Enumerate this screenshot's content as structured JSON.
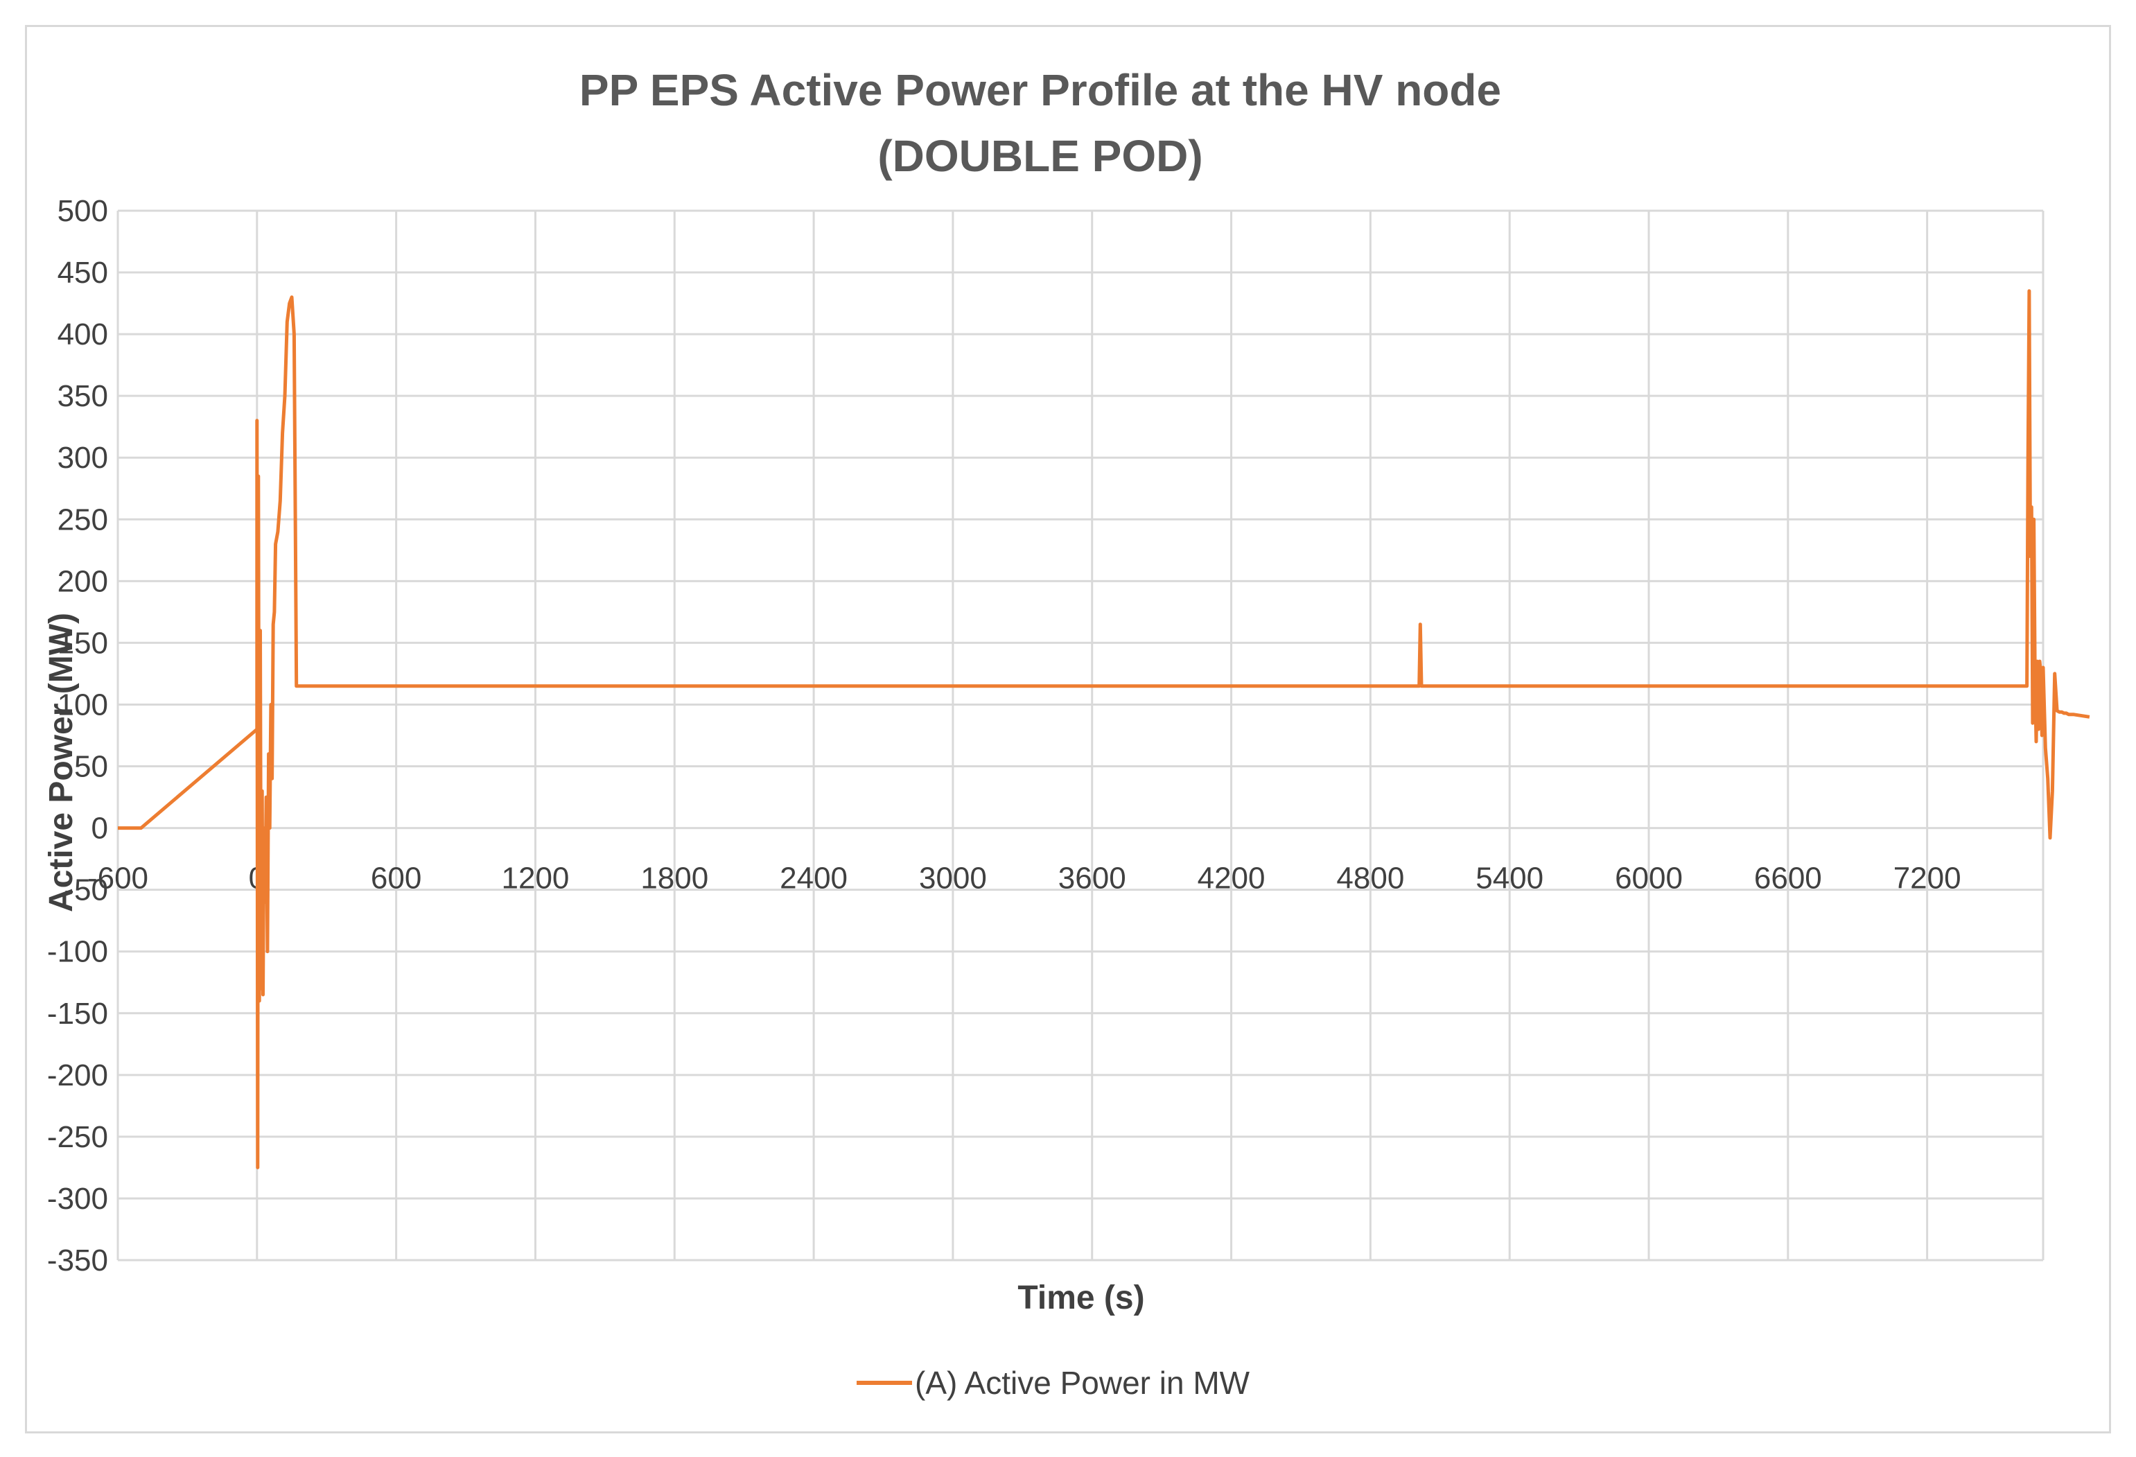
{
  "chart_data": {
    "type": "line",
    "title": [
      "PP EPS Active Power Profile at the HV node",
      "(DOUBLE POD)"
    ],
    "xlabel": "Time (s)",
    "ylabel": "Active Power (MW)",
    "xlim": [
      -600,
      7700
    ],
    "ylim": [
      -350,
      500
    ],
    "x_ticks": [
      -600,
      0,
      600,
      1200,
      1800,
      2400,
      3000,
      3600,
      4200,
      4800,
      5400,
      6000,
      6600,
      7200
    ],
    "x_tick_labels": [
      "-600",
      "0",
      "600",
      "1200",
      "1800",
      "2400",
      "3000",
      "3600",
      "4200",
      "4800",
      "5400",
      "6000",
      "6600",
      "7200"
    ],
    "y_ticks": [
      500,
      450,
      400,
      350,
      300,
      250,
      200,
      150,
      100,
      50,
      0,
      -50,
      -100,
      -150,
      -200,
      -250,
      -300,
      -350
    ],
    "y_tick_labels": [
      "500",
      "450",
      "400",
      "350",
      "300",
      "250",
      "200",
      "150",
      "100",
      "50",
      "0",
      "-50",
      "-100",
      "-150",
      "-200",
      "-250",
      "-300",
      "-350"
    ],
    "grid": true,
    "legend_position": "bottom",
    "color": "#ED7D31",
    "series": [
      {
        "name": "(A) Active Power in MW",
        "x": [
          -600,
          -500,
          0,
          0,
          3,
          6,
          10,
          14,
          18,
          22,
          26,
          30,
          35,
          40,
          45,
          50,
          55,
          60,
          65,
          70,
          75,
          80,
          90,
          100,
          110,
          120,
          130,
          140,
          150,
          160,
          170,
          180,
          190,
          200,
          205,
          5010,
          5015,
          5020,
          5025,
          7630,
          7635,
          7640,
          7645,
          7650,
          7655,
          7660,
          7665,
          7670,
          7675,
          7680,
          7685,
          7690,
          7695,
          7700,
          7710,
          7720,
          7730,
          7740,
          7750,
          7760,
          7770,
          7780,
          7790,
          7800,
          7810,
          7830,
          7900
        ],
        "y": [
          0,
          0,
          80,
          330,
          -275,
          285,
          -140,
          160,
          -130,
          30,
          -135,
          0,
          -60,
          25,
          -100,
          60,
          0,
          100,
          40,
          165,
          175,
          230,
          240,
          265,
          320,
          350,
          410,
          425,
          430,
          400,
          115,
          115,
          115,
          115,
          115,
          115,
          165,
          115,
          115,
          115,
          300,
          435,
          220,
          260,
          85,
          250,
          120,
          70,
          135,
          80,
          135,
          125,
          75,
          130,
          65,
          40,
          -8,
          30,
          125,
          95,
          94,
          94,
          93,
          93,
          92,
          92,
          90
        ]
      }
    ]
  }
}
